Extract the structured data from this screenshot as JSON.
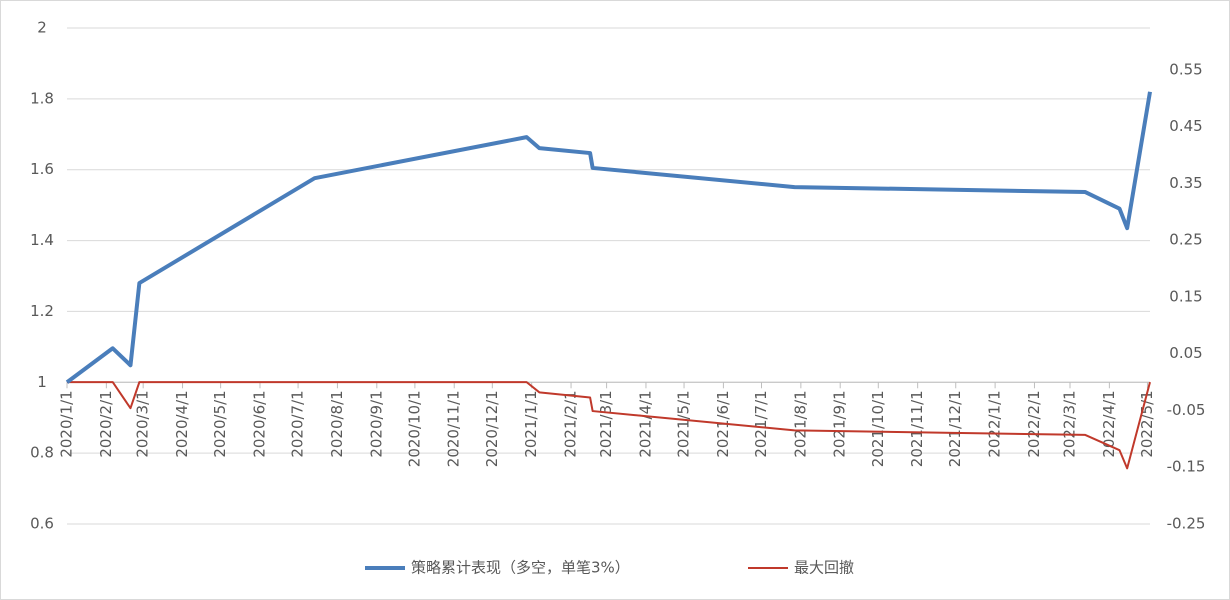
{
  "chart_data": {
    "type": "line",
    "x": [
      "2020/1/1",
      "2020/2/6",
      "2020/2/20",
      "2020/2/27",
      "2020/7/14",
      "2020/12/28",
      "2021/1/7",
      "2021/2/16",
      "2021/2/18",
      "2021/7/27",
      "2022/3/13",
      "2022/4/9",
      "2022/4/15",
      "2022/5/3"
    ],
    "series": [
      {
        "name": "策略累计表现（多空，单笔3%）",
        "color": "#4a7ebb",
        "values": [
          1.0,
          1.096,
          1.048,
          1.28,
          1.576,
          1.692,
          1.661,
          1.647,
          1.605,
          1.551,
          1.537,
          1.49,
          1.435,
          1.82
        ]
      },
      {
        "name": "最大回撤",
        "color": "#c0392b",
        "axis": "y2",
        "values": [
          0,
          0,
          -0.046,
          0,
          0,
          0,
          -0.018,
          -0.027,
          -0.051,
          -0.085,
          -0.093,
          -0.12,
          -0.152,
          0
        ]
      }
    ],
    "xlim": [
      "2020/1/1",
      "2022/5/3"
    ],
    "xticks": [
      "2020/1/1",
      "2020/2/1",
      "2020/3/1",
      "2020/4/1",
      "2020/5/1",
      "2020/6/1",
      "2020/7/1",
      "2020/8/1",
      "2020/9/1",
      "2020/10/1",
      "2020/11/1",
      "2020/12/1",
      "2021/1/1",
      "2021/2/1",
      "2021/3/1",
      "2021/4/1",
      "2021/5/1",
      "2021/6/1",
      "2021/7/1",
      "2021/8/1",
      "2021/9/1",
      "2021/10/1",
      "2021/11/1",
      "2021/12/1",
      "2022/1/1",
      "2022/2/1",
      "2022/3/1",
      "2022/4/1",
      "2022/5/1"
    ],
    "ylim": [
      0.6,
      2
    ],
    "yticks": [
      0.6,
      0.8,
      1,
      1.2,
      1.4,
      1.6,
      1.8,
      2
    ],
    "y2lim": [
      -0.25,
      0.624
    ],
    "y2ticks": [
      -0.25,
      -0.15,
      -0.05,
      0.05,
      0.15,
      0.25,
      0.35,
      0.45,
      0.55
    ],
    "x_axis_crosses": 1,
    "grid": true
  }
}
